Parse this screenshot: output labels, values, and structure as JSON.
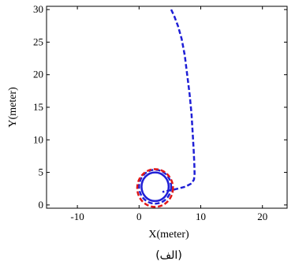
{
  "chart_data": {
    "type": "line",
    "title": "",
    "xlabel": "X(meter)",
    "ylabel": "Y(meter)",
    "caption": "(الف)",
    "xlim": [
      -15,
      24
    ],
    "ylim": [
      -0.5,
      30.5
    ],
    "grid": false,
    "x_ticks": [
      -10,
      0,
      10,
      20
    ],
    "y_ticks": [
      0,
      5,
      10,
      15,
      20,
      25,
      30
    ],
    "series": [
      {
        "style": "dashed",
        "color": "#1f1fd6",
        "x": [
          5.2,
          5.7,
          6.3,
          6.9,
          7.4,
          7.8,
          8.2,
          8.5,
          8.7,
          8.85,
          8.95,
          9.0,
          8.9,
          8.5,
          7.5,
          5.8,
          4.3,
          3.8
        ],
        "y": [
          30.0,
          29.0,
          27.5,
          25.5,
          23.0,
          20.0,
          17.0,
          14.0,
          11.0,
          8.5,
          6.5,
          4.8,
          3.9,
          3.3,
          2.8,
          2.4,
          2.1,
          2.0
        ]
      },
      {
        "style": "solid",
        "color": "#1f1fd6",
        "shape": "circle",
        "center": [
          2.6,
          2.8
        ],
        "radius": 2.2
      },
      {
        "style": "dashed",
        "color": "#1f1fd6",
        "shape": "circle",
        "center": [
          2.6,
          2.8
        ],
        "radius": 2.6
      },
      {
        "style": "dashed",
        "color": "#e01818",
        "shape": "circle",
        "center": [
          2.6,
          2.6
        ],
        "radius": 2.9
      }
    ]
  },
  "colors": {
    "blue": "#1f1fd6",
    "red": "#e01818",
    "axis": "#000000"
  }
}
